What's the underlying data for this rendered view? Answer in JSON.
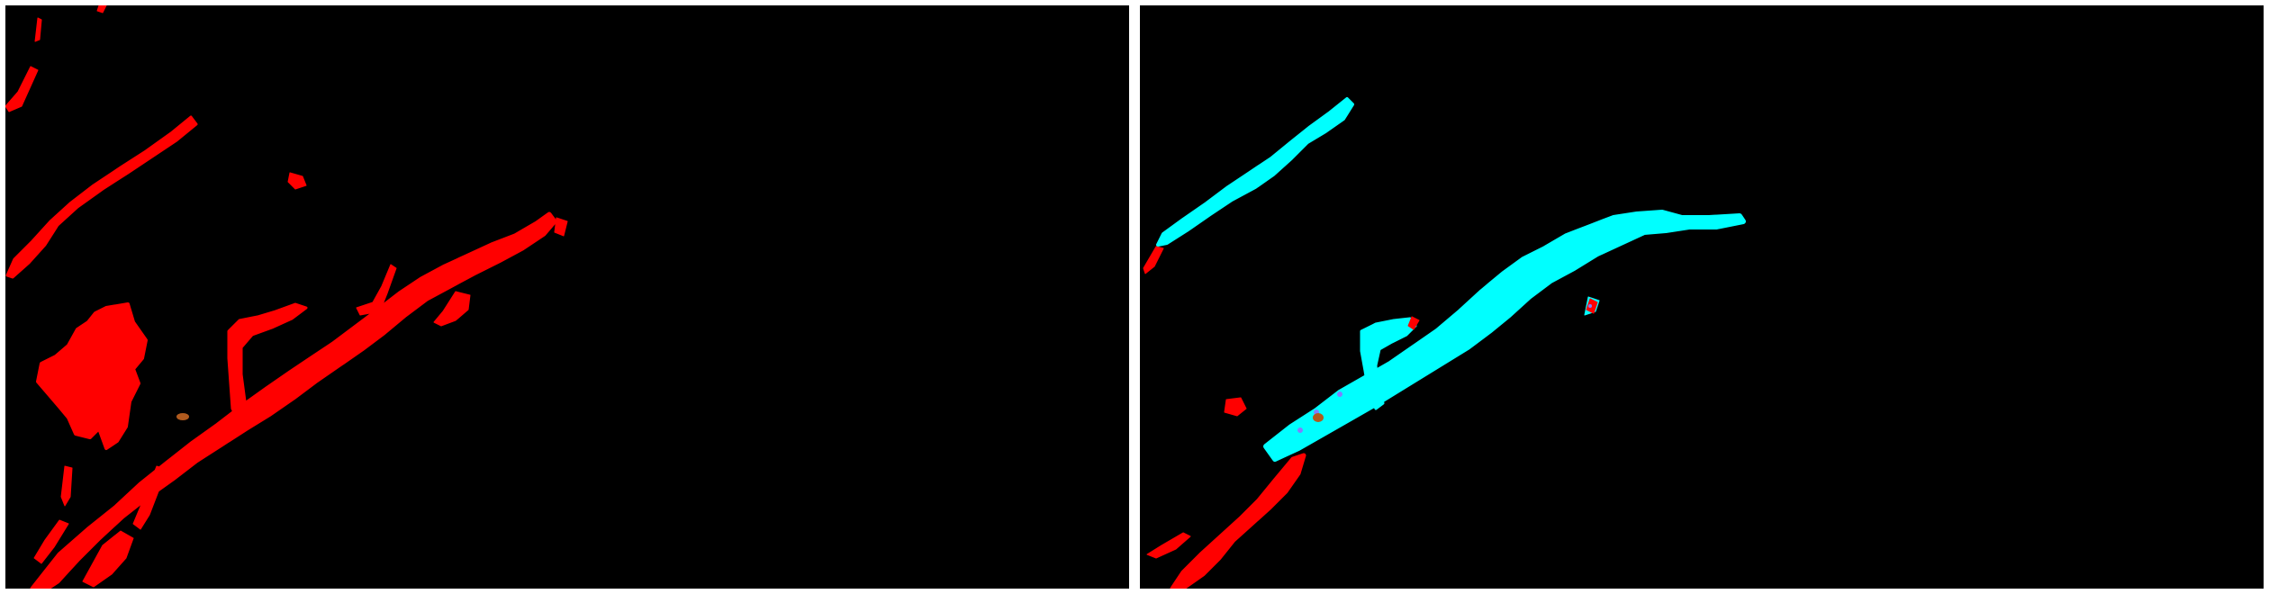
{
  "colors": {
    "background": "#000000",
    "divider": "#ffffff",
    "class_red": "#ff0000",
    "class_cyan": "#00ffff",
    "class_brown": "#b05a1e",
    "class_mixed_edge": "#7f7fff"
  },
  "panels": [
    {
      "id": "left",
      "description_visible": false
    },
    {
      "id": "right",
      "description_visible": false
    }
  ]
}
